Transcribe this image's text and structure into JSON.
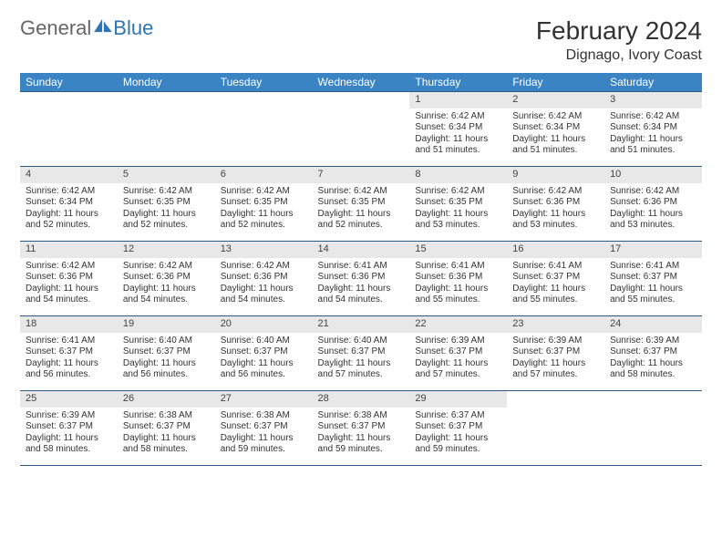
{
  "brand": {
    "part1": "General",
    "part2": "Blue"
  },
  "title": "February 2024",
  "location": "Dignago, Ivory Coast",
  "colors": {
    "header_bg": "#3b84c4",
    "header_text": "#ffffff",
    "daynum_bg": "#e8e8e8",
    "cell_border": "#2d5a85",
    "brand_blue": "#2d75b5"
  },
  "weekdays": [
    "Sunday",
    "Monday",
    "Tuesday",
    "Wednesday",
    "Thursday",
    "Friday",
    "Saturday"
  ],
  "weeks": [
    [
      null,
      null,
      null,
      null,
      {
        "n": "1",
        "sr": "Sunrise: 6:42 AM",
        "ss": "Sunset: 6:34 PM",
        "dl": "Daylight: 11 hours and 51 minutes."
      },
      {
        "n": "2",
        "sr": "Sunrise: 6:42 AM",
        "ss": "Sunset: 6:34 PM",
        "dl": "Daylight: 11 hours and 51 minutes."
      },
      {
        "n": "3",
        "sr": "Sunrise: 6:42 AM",
        "ss": "Sunset: 6:34 PM",
        "dl": "Daylight: 11 hours and 51 minutes."
      }
    ],
    [
      {
        "n": "4",
        "sr": "Sunrise: 6:42 AM",
        "ss": "Sunset: 6:34 PM",
        "dl": "Daylight: 11 hours and 52 minutes."
      },
      {
        "n": "5",
        "sr": "Sunrise: 6:42 AM",
        "ss": "Sunset: 6:35 PM",
        "dl": "Daylight: 11 hours and 52 minutes."
      },
      {
        "n": "6",
        "sr": "Sunrise: 6:42 AM",
        "ss": "Sunset: 6:35 PM",
        "dl": "Daylight: 11 hours and 52 minutes."
      },
      {
        "n": "7",
        "sr": "Sunrise: 6:42 AM",
        "ss": "Sunset: 6:35 PM",
        "dl": "Daylight: 11 hours and 52 minutes."
      },
      {
        "n": "8",
        "sr": "Sunrise: 6:42 AM",
        "ss": "Sunset: 6:35 PM",
        "dl": "Daylight: 11 hours and 53 minutes."
      },
      {
        "n": "9",
        "sr": "Sunrise: 6:42 AM",
        "ss": "Sunset: 6:36 PM",
        "dl": "Daylight: 11 hours and 53 minutes."
      },
      {
        "n": "10",
        "sr": "Sunrise: 6:42 AM",
        "ss": "Sunset: 6:36 PM",
        "dl": "Daylight: 11 hours and 53 minutes."
      }
    ],
    [
      {
        "n": "11",
        "sr": "Sunrise: 6:42 AM",
        "ss": "Sunset: 6:36 PM",
        "dl": "Daylight: 11 hours and 54 minutes."
      },
      {
        "n": "12",
        "sr": "Sunrise: 6:42 AM",
        "ss": "Sunset: 6:36 PM",
        "dl": "Daylight: 11 hours and 54 minutes."
      },
      {
        "n": "13",
        "sr": "Sunrise: 6:42 AM",
        "ss": "Sunset: 6:36 PM",
        "dl": "Daylight: 11 hours and 54 minutes."
      },
      {
        "n": "14",
        "sr": "Sunrise: 6:41 AM",
        "ss": "Sunset: 6:36 PM",
        "dl": "Daylight: 11 hours and 54 minutes."
      },
      {
        "n": "15",
        "sr": "Sunrise: 6:41 AM",
        "ss": "Sunset: 6:36 PM",
        "dl": "Daylight: 11 hours and 55 minutes."
      },
      {
        "n": "16",
        "sr": "Sunrise: 6:41 AM",
        "ss": "Sunset: 6:37 PM",
        "dl": "Daylight: 11 hours and 55 minutes."
      },
      {
        "n": "17",
        "sr": "Sunrise: 6:41 AM",
        "ss": "Sunset: 6:37 PM",
        "dl": "Daylight: 11 hours and 55 minutes."
      }
    ],
    [
      {
        "n": "18",
        "sr": "Sunrise: 6:41 AM",
        "ss": "Sunset: 6:37 PM",
        "dl": "Daylight: 11 hours and 56 minutes."
      },
      {
        "n": "19",
        "sr": "Sunrise: 6:40 AM",
        "ss": "Sunset: 6:37 PM",
        "dl": "Daylight: 11 hours and 56 minutes."
      },
      {
        "n": "20",
        "sr": "Sunrise: 6:40 AM",
        "ss": "Sunset: 6:37 PM",
        "dl": "Daylight: 11 hours and 56 minutes."
      },
      {
        "n": "21",
        "sr": "Sunrise: 6:40 AM",
        "ss": "Sunset: 6:37 PM",
        "dl": "Daylight: 11 hours and 57 minutes."
      },
      {
        "n": "22",
        "sr": "Sunrise: 6:39 AM",
        "ss": "Sunset: 6:37 PM",
        "dl": "Daylight: 11 hours and 57 minutes."
      },
      {
        "n": "23",
        "sr": "Sunrise: 6:39 AM",
        "ss": "Sunset: 6:37 PM",
        "dl": "Daylight: 11 hours and 57 minutes."
      },
      {
        "n": "24",
        "sr": "Sunrise: 6:39 AM",
        "ss": "Sunset: 6:37 PM",
        "dl": "Daylight: 11 hours and 58 minutes."
      }
    ],
    [
      {
        "n": "25",
        "sr": "Sunrise: 6:39 AM",
        "ss": "Sunset: 6:37 PM",
        "dl": "Daylight: 11 hours and 58 minutes."
      },
      {
        "n": "26",
        "sr": "Sunrise: 6:38 AM",
        "ss": "Sunset: 6:37 PM",
        "dl": "Daylight: 11 hours and 58 minutes."
      },
      {
        "n": "27",
        "sr": "Sunrise: 6:38 AM",
        "ss": "Sunset: 6:37 PM",
        "dl": "Daylight: 11 hours and 59 minutes."
      },
      {
        "n": "28",
        "sr": "Sunrise: 6:38 AM",
        "ss": "Sunset: 6:37 PM",
        "dl": "Daylight: 11 hours and 59 minutes."
      },
      {
        "n": "29",
        "sr": "Sunrise: 6:37 AM",
        "ss": "Sunset: 6:37 PM",
        "dl": "Daylight: 11 hours and 59 minutes."
      },
      null,
      null
    ]
  ]
}
